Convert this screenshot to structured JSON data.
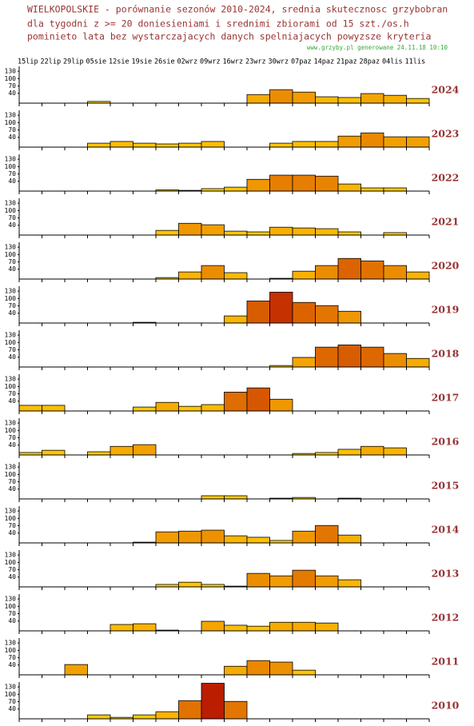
{
  "chart_data": {
    "type": "bar",
    "title": "WIELKOPOLSKIE - porównanie sezonów 2010-2024, srednia skutecznosc grzybobran",
    "subtitle": [
      "dla tygodni z >= 20 doniesieniami i srednimi zbiorami od 15 szt./os.h",
      "pominieto lata bez wystarczajacych danych spelniajacych powyzsze kryteria"
    ],
    "source": "www.grzyby.pl generowane 24.11.18 10:10",
    "categories": [
      "15lip",
      "22lip",
      "29lip",
      "05sie",
      "12sie",
      "19sie",
      "26sie",
      "02wrz",
      "09wrz",
      "16wrz",
      "23wrz",
      "30wrz",
      "07paz",
      "14paz",
      "21paz",
      "28paz",
      "04lis",
      "11lis"
    ],
    "ylim": [
      0,
      150
    ],
    "yticks": [
      40,
      70,
      100,
      130
    ],
    "series": [
      {
        "name": "2024",
        "values": [
          null,
          null,
          null,
          7,
          null,
          null,
          null,
          null,
          null,
          null,
          35,
          55,
          45,
          26,
          23,
          39,
          32,
          19
        ]
      },
      {
        "name": "2023",
        "values": [
          null,
          null,
          null,
          16,
          23,
          16,
          13,
          16,
          23,
          null,
          null,
          16,
          23,
          23,
          45,
          58,
          42,
          42
        ]
      },
      {
        "name": "2022",
        "values": [
          null,
          null,
          null,
          null,
          null,
          null,
          5,
          3,
          10,
          16,
          48,
          65,
          65,
          61,
          29,
          13,
          13,
          null
        ]
      },
      {
        "name": "2021",
        "values": [
          null,
          null,
          null,
          null,
          null,
          null,
          19,
          48,
          42,
          16,
          13,
          32,
          29,
          26,
          13,
          null,
          10,
          null
        ]
      },
      {
        "name": "2020",
        "values": [
          null,
          null,
          null,
          null,
          null,
          null,
          6,
          29,
          55,
          26,
          null,
          3,
          32,
          55,
          84,
          74,
          55,
          29
        ]
      },
      {
        "name": "2019",
        "values": [
          null,
          null,
          null,
          null,
          null,
          3,
          null,
          null,
          null,
          29,
          90,
          126,
          84,
          71,
          48,
          null,
          null,
          null
        ]
      },
      {
        "name": "2018",
        "values": [
          null,
          null,
          null,
          null,
          null,
          null,
          null,
          null,
          null,
          null,
          null,
          6,
          39,
          81,
          90,
          81,
          55,
          35
        ]
      },
      {
        "name": "2017",
        "values": [
          23,
          23,
          null,
          null,
          null,
          16,
          35,
          19,
          26,
          77,
          94,
          48,
          null,
          null,
          null,
          null,
          null,
          null
        ]
      },
      {
        "name": "2016",
        "values": [
          10,
          19,
          null,
          13,
          35,
          42,
          null,
          null,
          null,
          null,
          null,
          null,
          6,
          10,
          23,
          35,
          29,
          null
        ]
      },
      {
        "name": "2015",
        "values": [
          null,
          null,
          null,
          null,
          null,
          null,
          null,
          null,
          13,
          13,
          null,
          3,
          6,
          null,
          3,
          null,
          null,
          null
        ]
      },
      {
        "name": "2014",
        "values": [
          null,
          null,
          null,
          null,
          null,
          3,
          45,
          48,
          52,
          29,
          23,
          10,
          48,
          71,
          32,
          null,
          null,
          null
        ]
      },
      {
        "name": "2013",
        "values": [
          null,
          null,
          null,
          null,
          null,
          null,
          10,
          19,
          10,
          3,
          55,
          45,
          68,
          45,
          29,
          null,
          null,
          null
        ]
      },
      {
        "name": "2012",
        "values": [
          null,
          null,
          null,
          null,
          26,
          29,
          3,
          null,
          39,
          23,
          19,
          35,
          35,
          32,
          null,
          null,
          null,
          null
        ]
      },
      {
        "name": "2011",
        "values": [
          null,
          null,
          42,
          null,
          null,
          null,
          null,
          null,
          null,
          35,
          58,
          52,
          19,
          null,
          null,
          null,
          null,
          null
        ]
      },
      {
        "name": "2010",
        "values": [
          null,
          null,
          null,
          16,
          6,
          16,
          29,
          74,
          145,
          71,
          null,
          null,
          null,
          null,
          null,
          null,
          null,
          null
        ]
      }
    ]
  }
}
